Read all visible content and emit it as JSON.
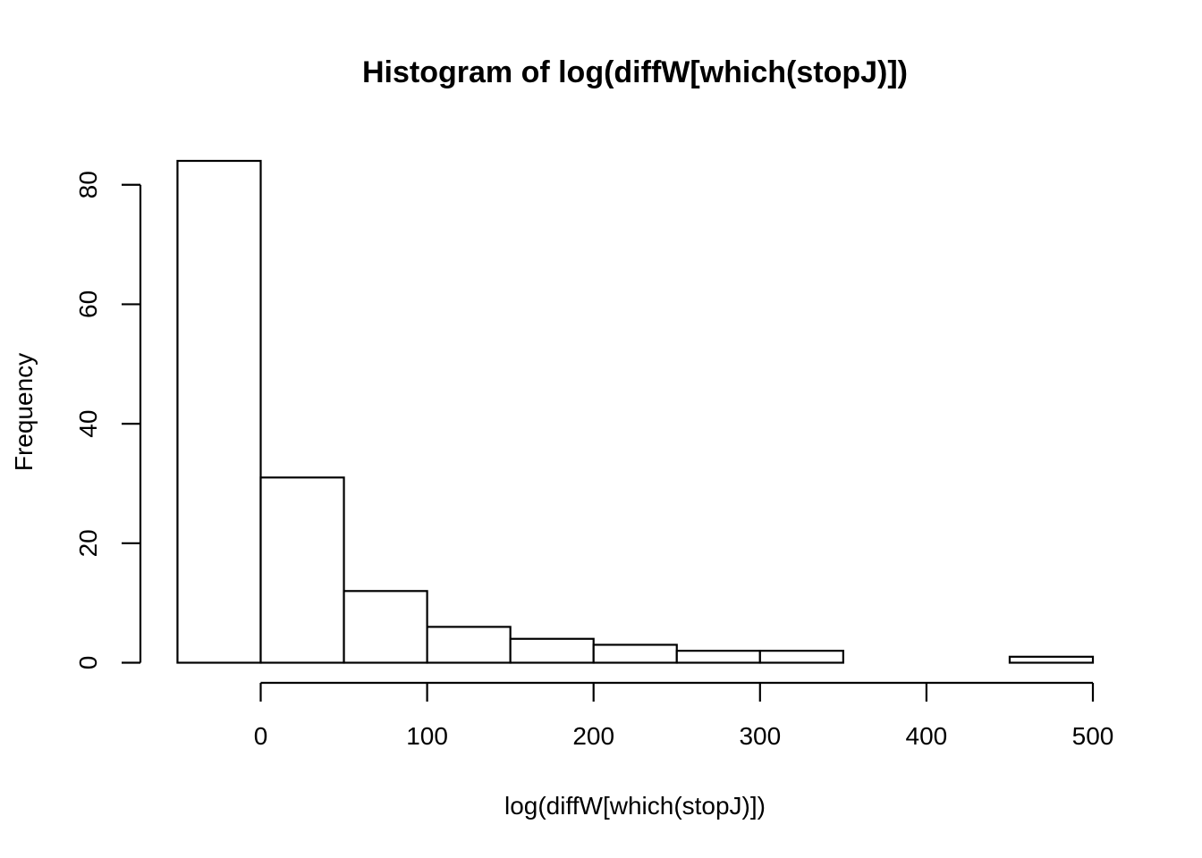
{
  "chart_data": {
    "type": "bar",
    "title": "Histogram of log(diffW[which(stopJ)])",
    "xlabel": "log(diffW[which(stopJ)])",
    "ylabel": "Frequency",
    "bins": [
      {
        "x0": -50,
        "x1": 0,
        "count": 84
      },
      {
        "x0": 0,
        "x1": 50,
        "count": 31
      },
      {
        "x0": 50,
        "x1": 100,
        "count": 12
      },
      {
        "x0": 100,
        "x1": 150,
        "count": 6
      },
      {
        "x0": 150,
        "x1": 200,
        "count": 4
      },
      {
        "x0": 200,
        "x1": 250,
        "count": 3
      },
      {
        "x0": 250,
        "x1": 300,
        "count": 2
      },
      {
        "x0": 300,
        "x1": 350,
        "count": 2
      },
      {
        "x0": 350,
        "x1": 400,
        "count": 0
      },
      {
        "x0": 400,
        "x1": 450,
        "count": 0
      },
      {
        "x0": 450,
        "x1": 500,
        "count": 1
      }
    ],
    "x_ticks": [
      0,
      100,
      200,
      300,
      400,
      500
    ],
    "y_ticks": [
      0,
      20,
      40,
      60,
      80
    ],
    "xlim": [
      -50,
      500
    ],
    "ylim": [
      0,
      84
    ],
    "grid": false,
    "colors": {
      "bar_fill": "#ffffff",
      "bar_stroke": "#000000"
    }
  }
}
